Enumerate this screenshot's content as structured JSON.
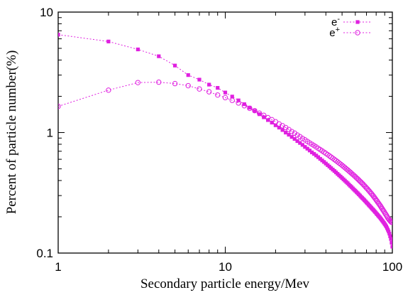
{
  "chart_data": {
    "type": "scatter",
    "xscale": "log",
    "yscale": "log",
    "xlim": [
      1,
      100
    ],
    "ylim": [
      0.1,
      10
    ],
    "xlabel": "Secondary particle energy/Mev",
    "ylabel": "Percent of particle number(%)",
    "x_ticks": [
      {
        "value": 1,
        "label": "1"
      },
      {
        "value": 10,
        "label": "10"
      },
      {
        "value": 100,
        "label": "100"
      }
    ],
    "y_ticks": [
      {
        "value": 0.1,
        "label": "0.1"
      },
      {
        "value": 1,
        "label": "1"
      },
      {
        "value": 10,
        "label": "10"
      }
    ],
    "grid": false,
    "legend_position": "top-right",
    "x": [
      1,
      2,
      3,
      4,
      5,
      6,
      7,
      8,
      9,
      10,
      11,
      12,
      13,
      14,
      15,
      16,
      17,
      18,
      19,
      20,
      21,
      22,
      23,
      24,
      25,
      26,
      27,
      28,
      29,
      30,
      31,
      32,
      33,
      34,
      35,
      36,
      37,
      38,
      39,
      40,
      41,
      42,
      43,
      44,
      45,
      46,
      47,
      48,
      49,
      50,
      51,
      52,
      53,
      54,
      55,
      56,
      57,
      58,
      59,
      60,
      61,
      62,
      63,
      64,
      65,
      66,
      67,
      68,
      69,
      70,
      71,
      72,
      73,
      74,
      75,
      76,
      77,
      78,
      79,
      80,
      81,
      82,
      83,
      84,
      85,
      86,
      87,
      88,
      89,
      90,
      91,
      92,
      93,
      94,
      95,
      96,
      97,
      98,
      99,
      100
    ],
    "series": [
      {
        "name": "e-",
        "sup": "-",
        "marker": "filled-square",
        "color": "#e020e0",
        "values": [
          6.5,
          5.7,
          4.9,
          4.3,
          3.6,
          3.0,
          2.75,
          2.5,
          2.35,
          2.15,
          1.99,
          1.85,
          1.72,
          1.61,
          1.51,
          1.42,
          1.34,
          1.27,
          1.21,
          1.15,
          1.1,
          1.05,
          1.0,
          0.96,
          0.92,
          0.885,
          0.85,
          0.82,
          0.79,
          0.76,
          0.735,
          0.71,
          0.685,
          0.665,
          0.645,
          0.625,
          0.605,
          0.587,
          0.57,
          0.553,
          0.537,
          0.522,
          0.507,
          0.493,
          0.48,
          0.467,
          0.454,
          0.442,
          0.431,
          0.42,
          0.409,
          0.399,
          0.389,
          0.38,
          0.37,
          0.361,
          0.353,
          0.344,
          0.336,
          0.329,
          0.321,
          0.314,
          0.307,
          0.3,
          0.293,
          0.287,
          0.281,
          0.275,
          0.269,
          0.263,
          0.258,
          0.252,
          0.247,
          0.242,
          0.237,
          0.232,
          0.228,
          0.223,
          0.219,
          0.214,
          0.21,
          0.206,
          0.202,
          0.198,
          0.194,
          0.19,
          0.186,
          0.182,
          0.178,
          0.174,
          0.17,
          0.166,
          0.161,
          0.156,
          0.151,
          0.145,
          0.138,
          0.131,
          0.122,
          0.113
        ]
      },
      {
        "name": "e+",
        "sup": "+",
        "marker": "open-circle",
        "color": "#e020e0",
        "values": [
          1.65,
          2.25,
          2.6,
          2.62,
          2.55,
          2.45,
          2.3,
          2.18,
          2.05,
          1.95,
          1.85,
          1.76,
          1.67,
          1.59,
          1.52,
          1.45,
          1.39,
          1.33,
          1.28,
          1.23,
          1.18,
          1.14,
          1.1,
          1.06,
          1.02,
          0.99,
          0.955,
          0.925,
          0.895,
          0.87,
          0.845,
          0.82,
          0.8,
          0.78,
          0.76,
          0.74,
          0.722,
          0.705,
          0.688,
          0.672,
          0.656,
          0.641,
          0.626,
          0.612,
          0.598,
          0.585,
          0.572,
          0.559,
          0.547,
          0.535,
          0.523,
          0.512,
          0.5,
          0.49,
          0.479,
          0.469,
          0.459,
          0.449,
          0.44,
          0.431,
          0.421,
          0.413,
          0.404,
          0.395,
          0.387,
          0.379,
          0.371,
          0.363,
          0.355,
          0.347,
          0.34,
          0.332,
          0.325,
          0.318,
          0.311,
          0.304,
          0.297,
          0.29,
          0.283,
          0.276,
          0.27,
          0.263,
          0.257,
          0.251,
          0.245,
          0.239,
          0.233,
          0.227,
          0.222,
          0.216,
          0.211,
          0.206,
          0.201,
          0.196,
          0.192,
          0.188,
          0.185,
          0.182,
          0.18,
          0.18
        ]
      }
    ]
  }
}
